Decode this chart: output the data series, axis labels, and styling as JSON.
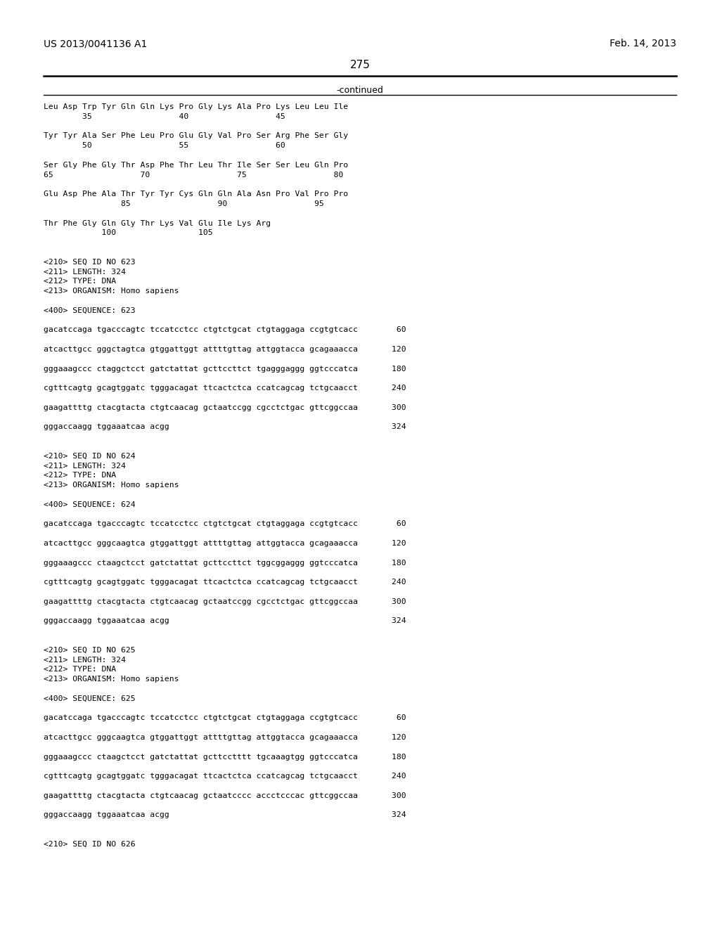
{
  "header_left": "US 2013/0041136 A1",
  "header_right": "Feb. 14, 2013",
  "page_number": "275",
  "continued_label": "-continued",
  "background_color": "#ffffff",
  "text_color": "#000000",
  "lines": [
    "Leu Asp Trp Tyr Gln Gln Lys Pro Gly Lys Ala Pro Lys Leu Leu Ile",
    "        35                  40                  45",
    "",
    "Tyr Tyr Ala Ser Phe Leu Pro Glu Gly Val Pro Ser Arg Phe Ser Gly",
    "        50                  55                  60",
    "",
    "Ser Gly Phe Gly Thr Asp Phe Thr Leu Thr Ile Ser Ser Leu Gln Pro",
    "65                  70                  75                  80",
    "",
    "Glu Asp Phe Ala Thr Tyr Tyr Cys Gln Gln Ala Asn Pro Val Pro Pro",
    "                85                  90                  95",
    "",
    "Thr Phe Gly Gln Gly Thr Lys Val Glu Ile Lys Arg",
    "            100                 105",
    "",
    "",
    "<210> SEQ ID NO 623",
    "<211> LENGTH: 324",
    "<212> TYPE: DNA",
    "<213> ORGANISM: Homo sapiens",
    "",
    "<400> SEQUENCE: 623",
    "",
    "gacatccaga tgacccagtc tccatcctcc ctgtctgcat ctgtaggaga ccgtgtcacc        60",
    "",
    "atcacttgcc gggctagtca gtggattggt attttgttag attggtacca gcagaaacca       120",
    "",
    "gggaaagccc ctaggctcct gatctattat gcttccttct tgagggaggg ggtcccatca       180",
    "",
    "cgtttcagtg gcagtggatc tgggacagat ttcactctca ccatcagcag tctgcaacct       240",
    "",
    "gaagattttg ctacgtacta ctgtcaacag gctaatccgg cgcctctgac gttcggccaa       300",
    "",
    "gggaccaagg tggaaatcaa acgg                                              324",
    "",
    "",
    "<210> SEQ ID NO 624",
    "<211> LENGTH: 324",
    "<212> TYPE: DNA",
    "<213> ORGANISM: Homo sapiens",
    "",
    "<400> SEQUENCE: 624",
    "",
    "gacatccaga tgacccagtc tccatcctcc ctgtctgcat ctgtaggaga ccgtgtcacc        60",
    "",
    "atcacttgcc gggcaagtca gtggattggt attttgttag attggtacca gcagaaacca       120",
    "",
    "gggaaagccc ctaagctcct gatctattat gcttccttct tggcggaggg ggtcccatca       180",
    "",
    "cgtttcagtg gcagtggatc tgggacagat ttcactctca ccatcagcag tctgcaacct       240",
    "",
    "gaagattttg ctacgtacta ctgtcaacag gctaatccgg cgcctctgac gttcggccaa       300",
    "",
    "gggaccaagg tggaaatcaa acgg                                              324",
    "",
    "",
    "<210> SEQ ID NO 625",
    "<211> LENGTH: 324",
    "<212> TYPE: DNA",
    "<213> ORGANISM: Homo sapiens",
    "",
    "<400> SEQUENCE: 625",
    "",
    "gacatccaga tgacccagtc tccatcctcc ctgtctgcat ctgtaggaga ccgtgtcacc        60",
    "",
    "atcacttgcc gggcaagtca gtggattggt attttgttag attggtacca gcagaaacca       120",
    "",
    "gggaaagccc ctaagctcct gatctattat gcttcctttt tgcaaagtgg ggtcccatca       180",
    "",
    "cgtttcagtg gcagtggatc tgggacagat ttcactctca ccatcagcag tctgcaacct       240",
    "",
    "gaagattttg ctacgtacta ctgtcaacag gctaatcccc accctcccac gttcggccaa       300",
    "",
    "gggaccaagg tggaaatcaa acgg                                              324",
    "",
    "",
    "<210> SEQ ID NO 626"
  ]
}
